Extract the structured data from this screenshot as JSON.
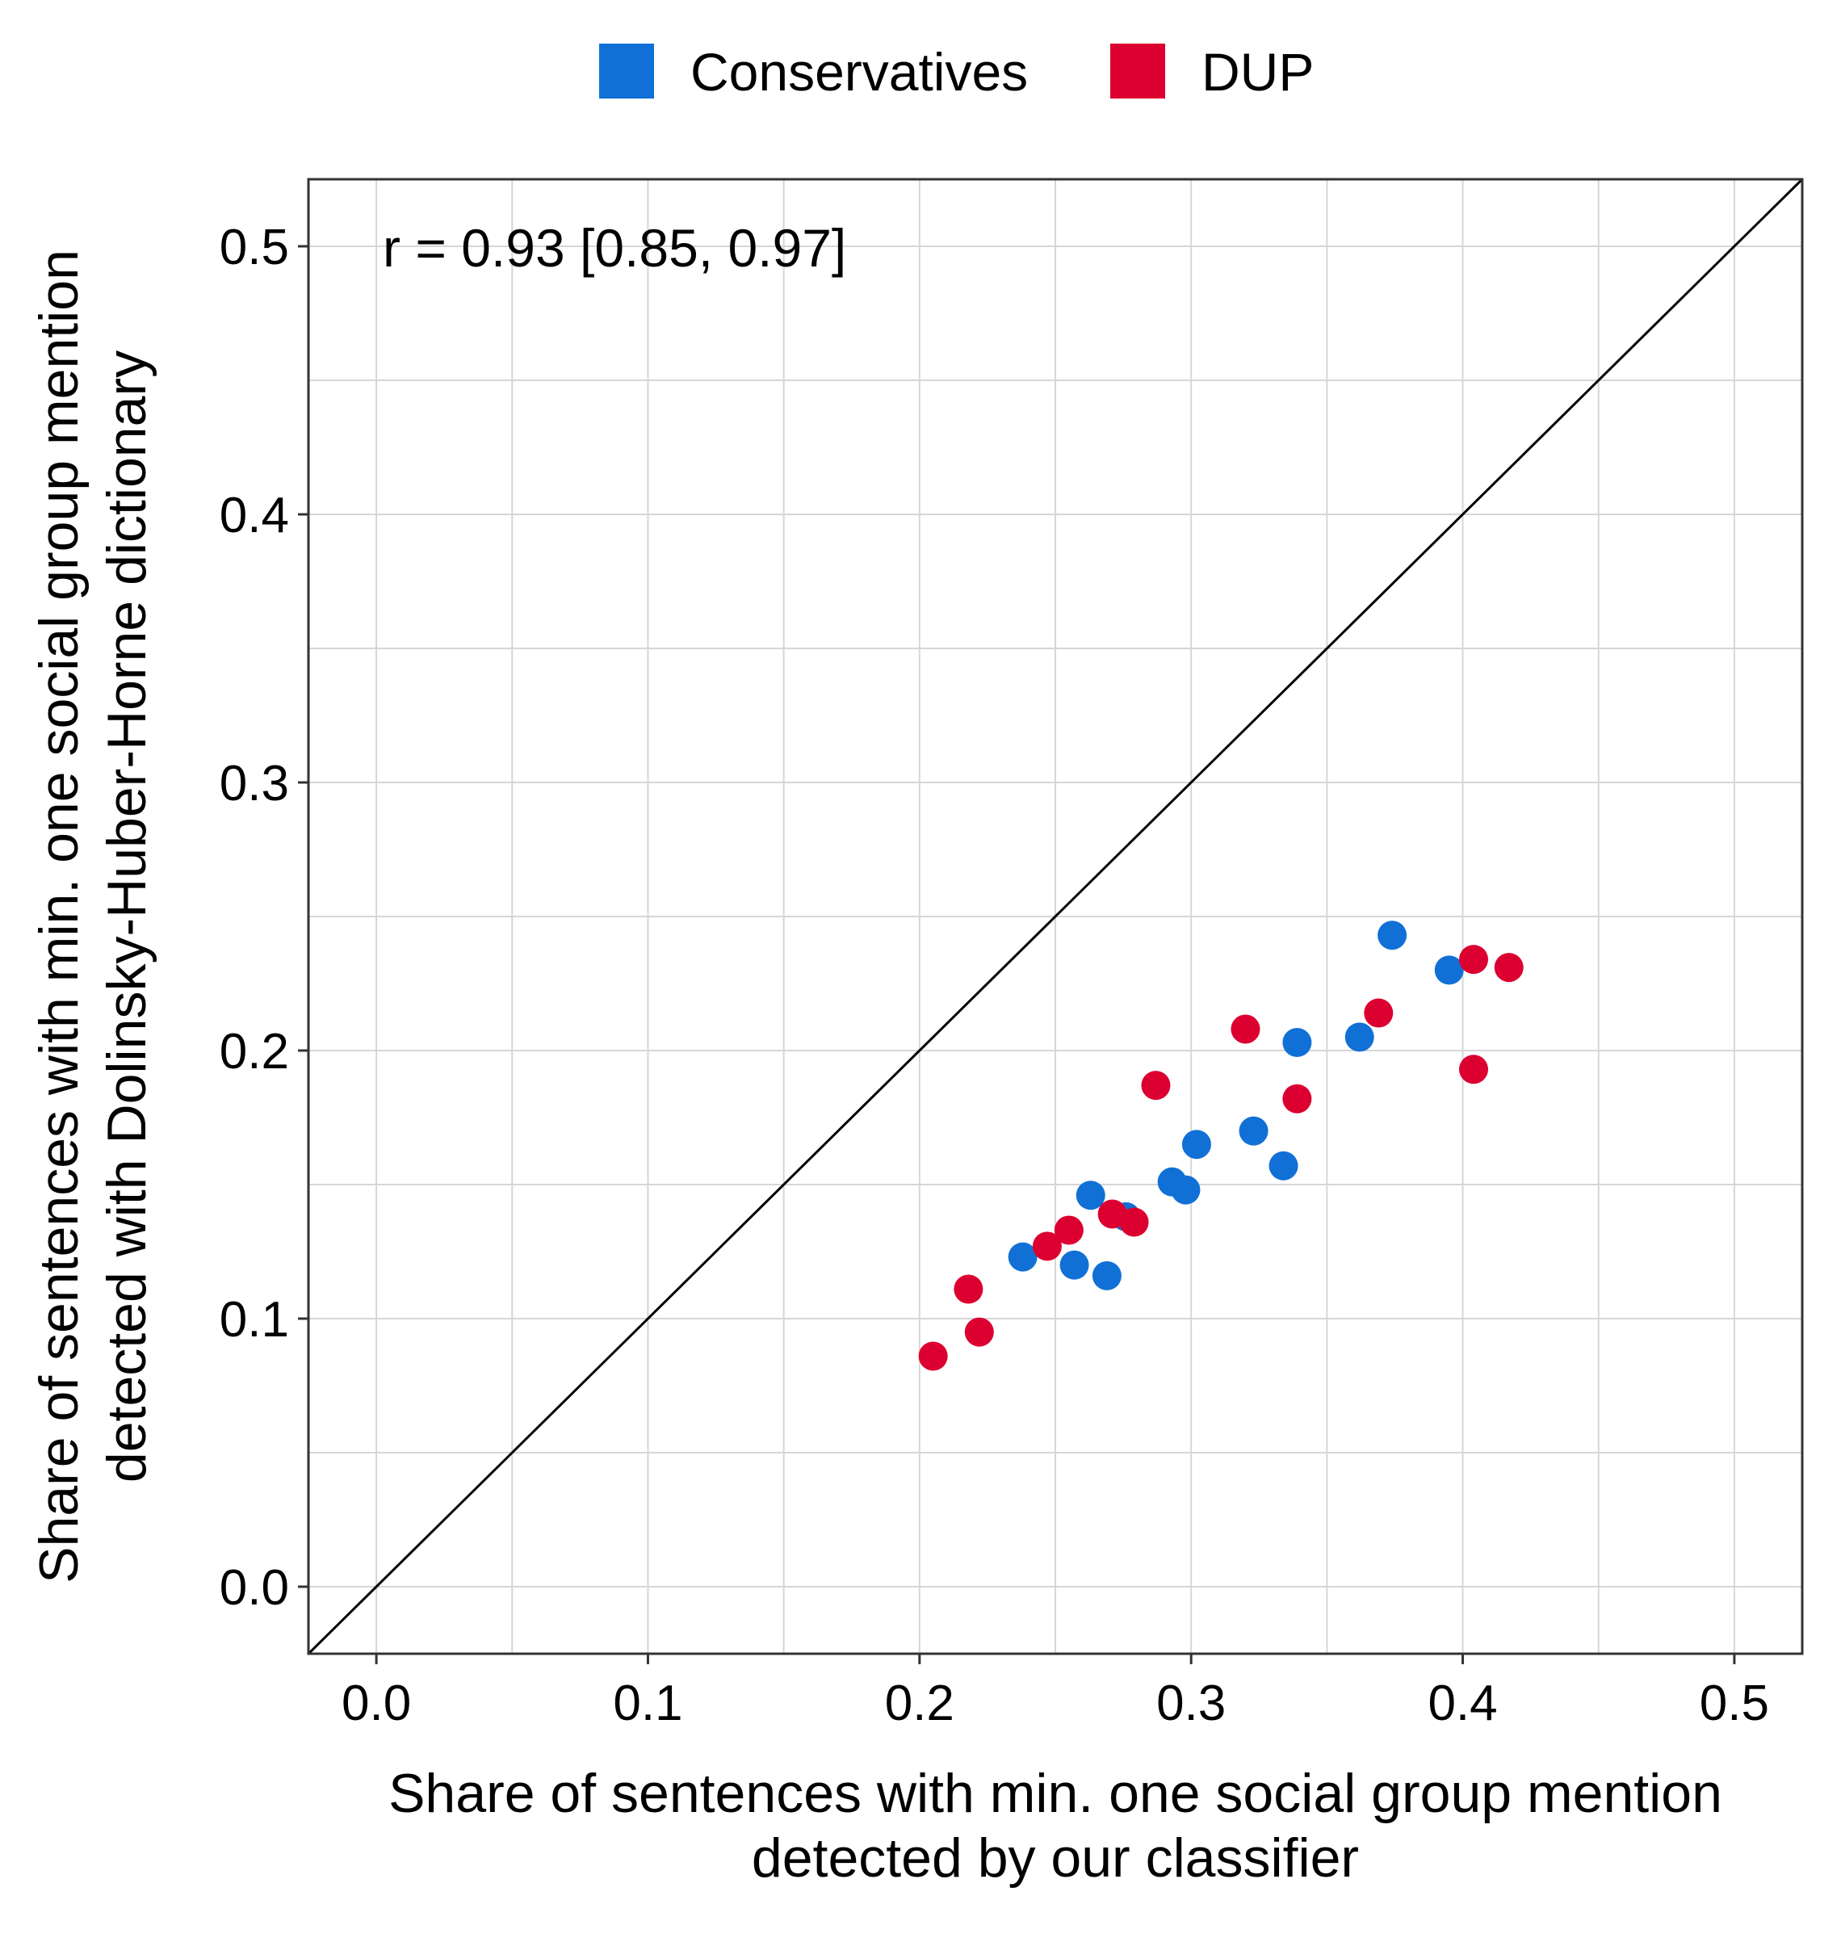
{
  "chart_data": {
    "type": "scatter",
    "xlabel": [
      "Share of sentences with min. one social group mention",
      "detected by our classifier"
    ],
    "ylabel": [
      "Share of sentences with min. one social group mention",
      "detected with Dolinsky-Huber-Horne dictionary"
    ],
    "xlim": [
      -0.025,
      0.525
    ],
    "ylim": [
      -0.025,
      0.525
    ],
    "x_ticks": [
      "0.0",
      "0.1",
      "0.2",
      "0.3",
      "0.4",
      "0.5"
    ],
    "y_ticks": [
      "0.0",
      "0.1",
      "0.2",
      "0.3",
      "0.4",
      "0.5"
    ],
    "grid": true,
    "legend_position": "top",
    "reference_line": "y = x",
    "annotation": "r = 0.93 [0.85, 0.97]",
    "series": [
      {
        "name": "Conservatives",
        "color": "#1170D6",
        "points": [
          [
            0.374,
            0.243
          ],
          [
            0.395,
            0.23
          ],
          [
            0.339,
            0.203
          ],
          [
            0.362,
            0.205
          ],
          [
            0.302,
            0.165
          ],
          [
            0.323,
            0.17
          ],
          [
            0.334,
            0.157
          ],
          [
            0.293,
            0.151
          ],
          [
            0.298,
            0.148
          ],
          [
            0.263,
            0.146
          ],
          [
            0.276,
            0.138
          ],
          [
            0.238,
            0.123
          ],
          [
            0.257,
            0.12
          ],
          [
            0.269,
            0.116
          ]
        ]
      },
      {
        "name": "DUP",
        "color": "#DC0030",
        "points": [
          [
            0.404,
            0.234
          ],
          [
            0.417,
            0.231
          ],
          [
            0.369,
            0.214
          ],
          [
            0.32,
            0.208
          ],
          [
            0.404,
            0.193
          ],
          [
            0.287,
            0.187
          ],
          [
            0.339,
            0.182
          ],
          [
            0.271,
            0.139
          ],
          [
            0.279,
            0.136
          ],
          [
            0.255,
            0.133
          ],
          [
            0.247,
            0.127
          ],
          [
            0.218,
            0.111
          ],
          [
            0.222,
            0.095
          ],
          [
            0.205,
            0.086
          ]
        ]
      }
    ]
  }
}
